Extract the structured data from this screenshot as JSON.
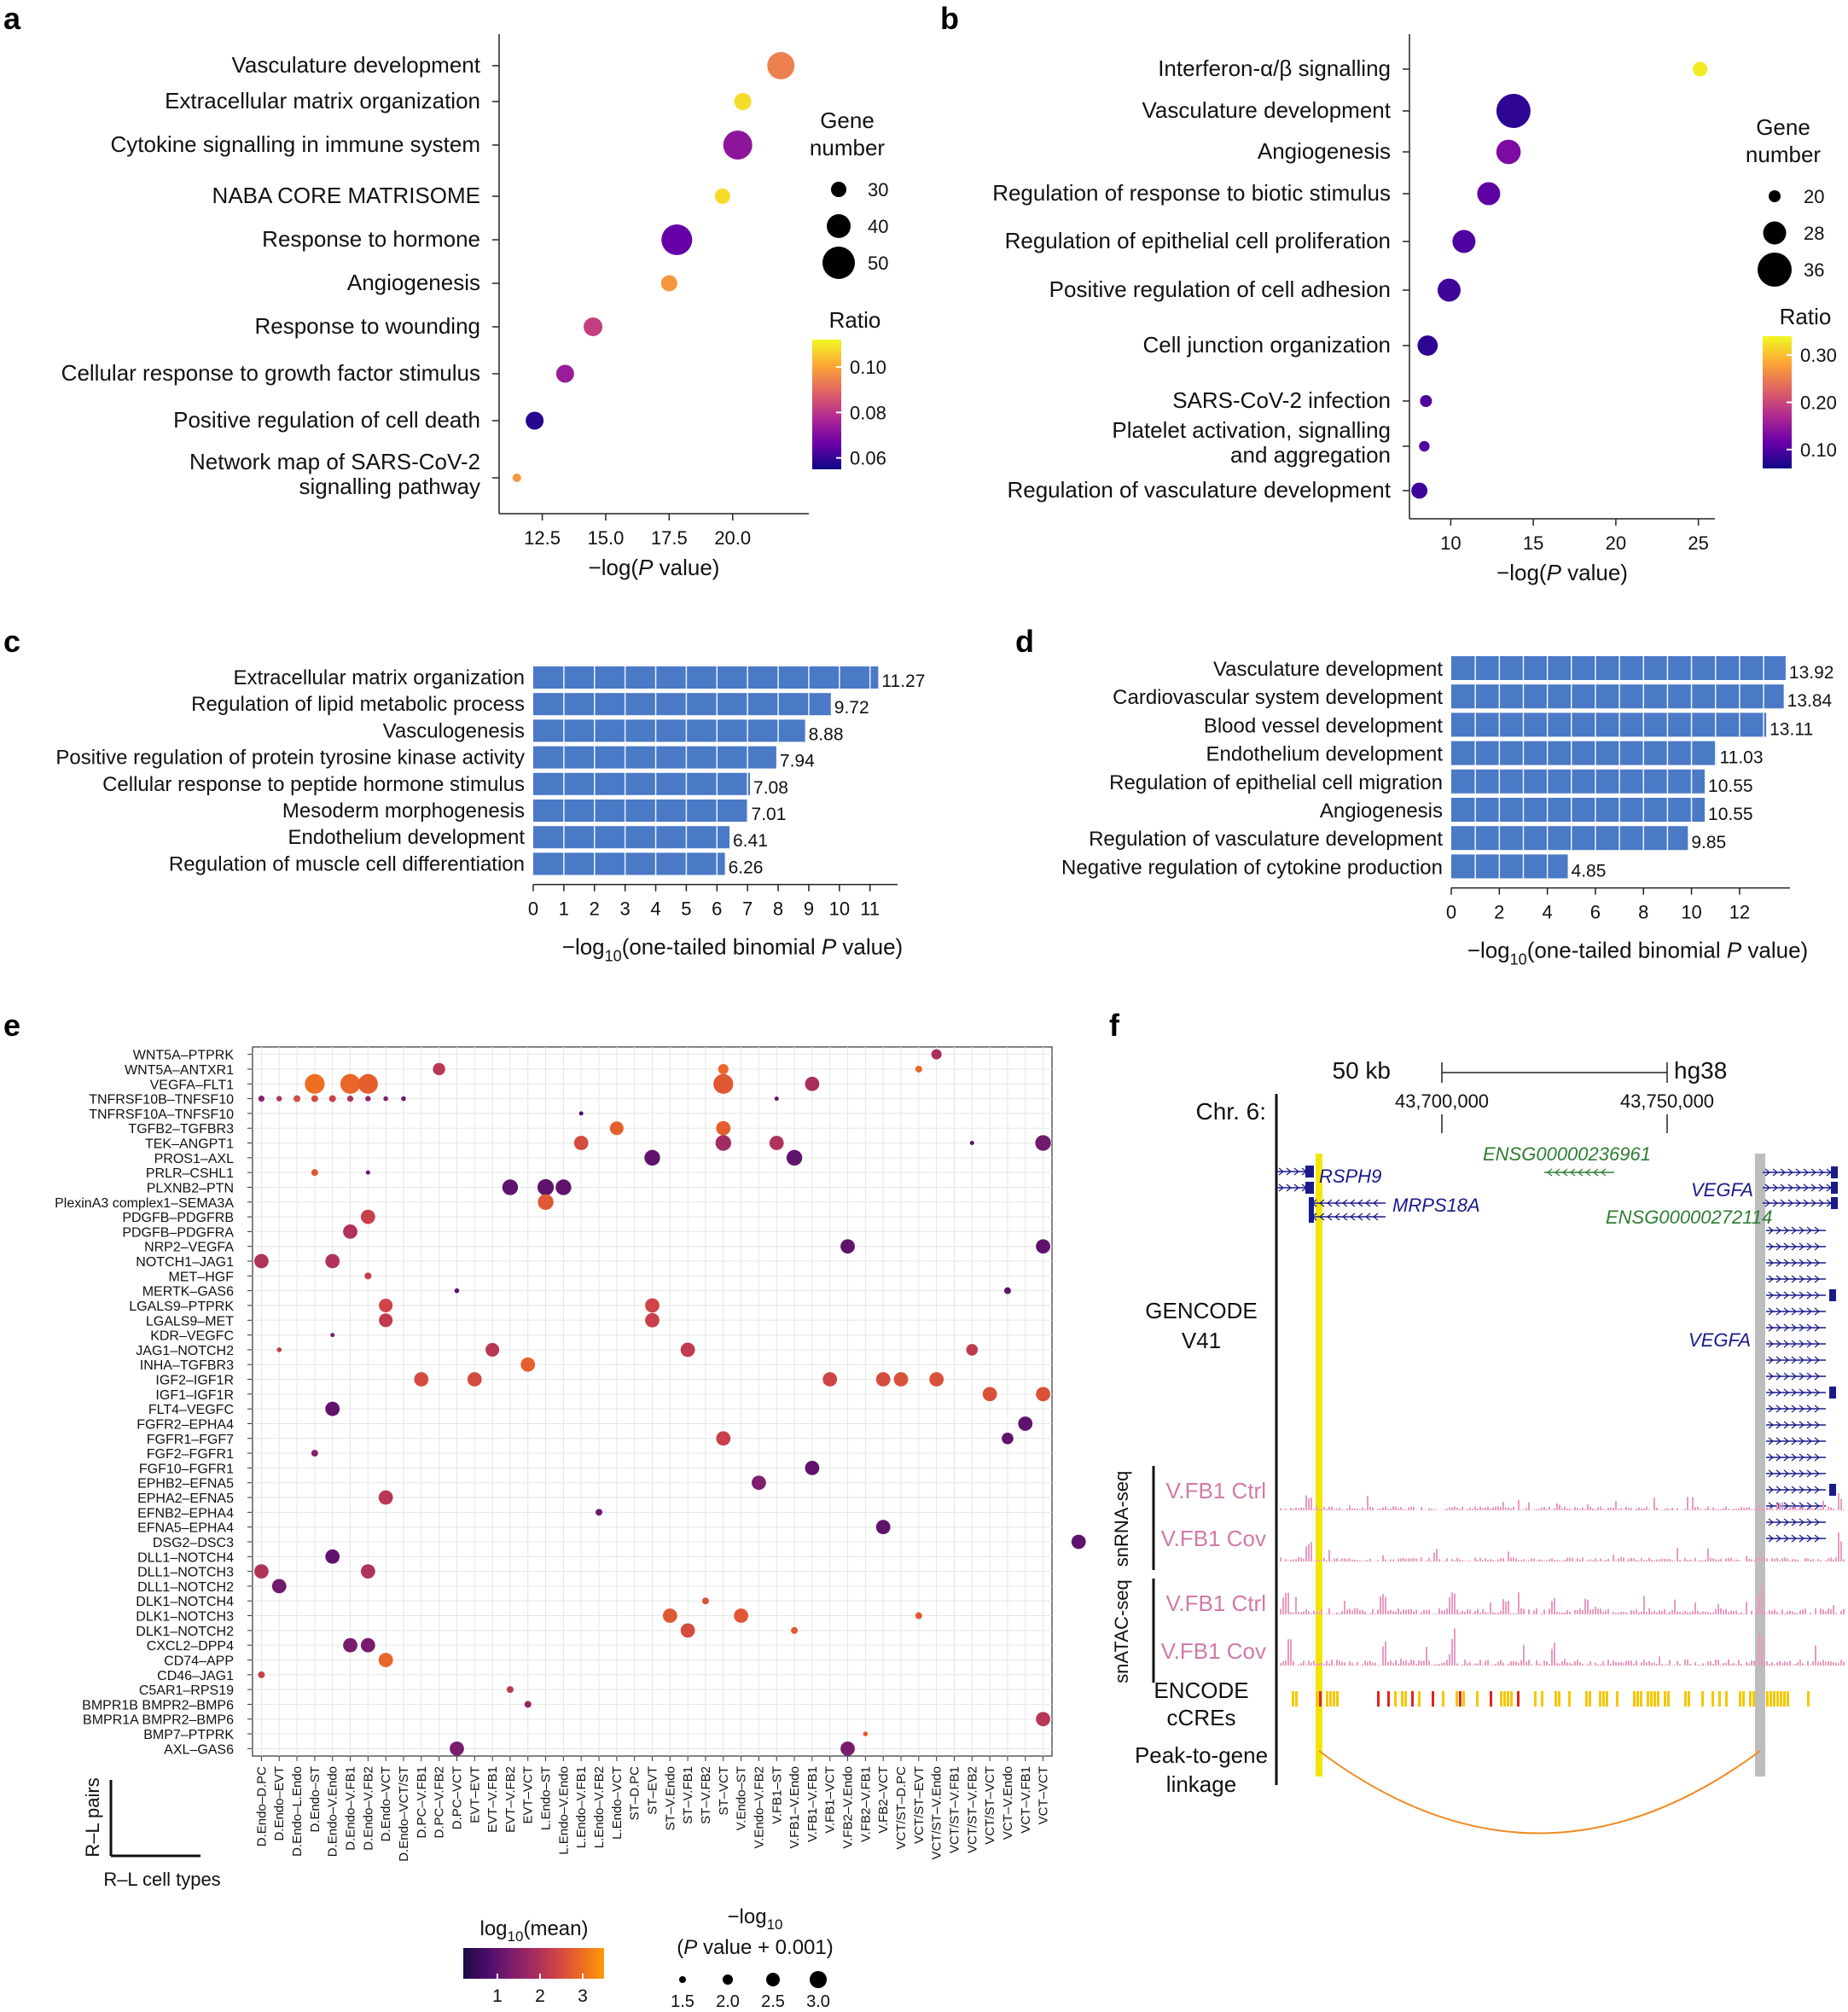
{
  "chart_data": [
    {
      "panel": "a",
      "type": "scatter",
      "categories": [
        "Vasculature development",
        "Extracellular matrix organization",
        "Cytokine signalling in immune system",
        "NABA CORE MATRISOME",
        "Response to hormone",
        "Angiogenesis",
        "Response to wounding",
        "Cellular response to growth factor stimulus",
        "Positive regulation of cell death",
        "Network map of SARS-CoV-2\nsignalling pathway"
      ],
      "x": [
        21.9,
        20.4,
        20.2,
        19.6,
        17.8,
        17.5,
        14.5,
        13.4,
        12.2,
        11.5
      ],
      "size": [
        44,
        32,
        46,
        30,
        48,
        31,
        34,
        33,
        33,
        22
      ],
      "color": [
        0.094,
        0.108,
        0.072,
        0.108,
        0.066,
        0.098,
        0.082,
        0.074,
        0.058,
        0.098
      ],
      "xlabel": "−log(P value)",
      "xticks": [
        12.5,
        15.0,
        17.5,
        20.0
      ],
      "xlim": [
        10.8,
        23.0
      ],
      "legend_size_title": "Gene number",
      "legend_size_values": [
        30,
        40,
        50
      ],
      "legend_color_title": "Ratio",
      "legend_color_ticks": [
        0.1,
        0.08,
        0.06
      ],
      "legend_color_range": [
        0.055,
        0.112
      ]
    },
    {
      "panel": "b",
      "type": "scatter",
      "categories": [
        "Interferon-α/β signalling",
        "Vasculature development",
        "Angiogenesis",
        "Regulation of response to biotic stimulus",
        "Regulation of epithelial cell proliferation",
        "Positive regulation of cell adhesion",
        "Cell junction organization",
        "SARS-CoV-2 infection",
        "Platelet activation, signalling\nand aggregation",
        "Regulation of vasculature development"
      ],
      "x": [
        25.1,
        13.8,
        13.5,
        12.3,
        10.8,
        9.9,
        8.6,
        8.5,
        8.4,
        8.1
      ],
      "size": [
        22,
        36,
        29,
        28,
        28,
        28,
        26,
        20,
        19,
        23
      ],
      "color": [
        0.33,
        0.08,
        0.13,
        0.11,
        0.1,
        0.09,
        0.08,
        0.1,
        0.1,
        0.09
      ],
      "xlabel": "−log(P value)",
      "xticks": [
        10,
        15,
        20,
        25
      ],
      "xlim": [
        7.5,
        26.0
      ],
      "legend_size_title": "Gene number",
      "legend_size_values": [
        20,
        28,
        36
      ],
      "legend_color_title": "Ratio",
      "legend_color_ticks": [
        0.3,
        0.2,
        0.1
      ],
      "legend_color_range": [
        0.06,
        0.34
      ]
    },
    {
      "panel": "c",
      "type": "bar",
      "categories": [
        "Extracellular matrix organization",
        "Regulation of lipid metabolic process",
        "Vasculogenesis",
        "Positive regulation of protein tyrosine kinase activity",
        "Cellular response to peptide hormone stimulus",
        "Mesoderm morphogenesis",
        "Endothelium development",
        "Regulation of muscle cell differentiation"
      ],
      "values": [
        11.27,
        9.72,
        8.88,
        7.94,
        7.08,
        7.01,
        6.41,
        6.26
      ],
      "value_labels": [
        "11.27",
        "9.72",
        "8.88",
        "7.94",
        "7.08",
        "7.01",
        "6.41",
        "6.26"
      ],
      "xlabel": "−log",
      "xlabel_sub": "10",
      "xlabel_tail": "(one-tailed binomial P value)",
      "xticks": [
        0,
        1,
        2,
        3,
        4,
        5,
        6,
        7,
        8,
        9,
        10,
        11
      ],
      "xlim": [
        0,
        11.9
      ]
    },
    {
      "panel": "d",
      "type": "bar",
      "categories": [
        "Vasculature development",
        "Cardiovascular system development",
        "Blood vessel development",
        "Endothelium development",
        "Regulation of epithelial cell migration",
        "Angiogenesis",
        "Regulation of vasculature development",
        "Negative regulation of cytokine production"
      ],
      "values": [
        13.92,
        13.84,
        13.11,
        11.03,
        10.55,
        10.55,
        9.85,
        4.85
      ],
      "value_labels": [
        "13.92",
        "13.84",
        "13.11",
        "11.03",
        "10.55",
        "10.55",
        "9.85",
        "4.85"
      ],
      "xlabel": "−log",
      "xlabel_sub": "10",
      "xlabel_tail": "(one-tailed binomial P value)",
      "xticks": [
        0,
        2,
        4,
        6,
        8,
        10,
        12
      ],
      "xlim": [
        0,
        14.1
      ]
    },
    {
      "panel": "e",
      "type": "scatter",
      "rows": [
        "WNT5A–PTPRK",
        "WNT5A–ANTXR1",
        "VEGFA–FLT1",
        "TNFRSF10B–TNFSF10",
        "TNFRSF10A–TNFSF10",
        "TGFB2–TGFBR3",
        "TEK–ANGPT1",
        "PROS1–AXL",
        "PRLR–CSHL1",
        "PLXNB2–PTN",
        "PlexinA3 complex1–SEMA3A",
        "PDGFB–PDGFRB",
        "PDGFB–PDGFRA",
        "NRP2–VEGFA",
        "NOTCH1–JAG1",
        "MET–HGF",
        "MERTK–GAS6",
        "LGALS9–PTPRK",
        "LGALS9–MET",
        "KDR–VEGFC",
        "JAG1–NOTCH2",
        "INHA–TGFBR3",
        "IGF2–IGF1R",
        "IGF1–IGF1R",
        "FLT4–VEGFC",
        "FGFR2–EPHA4",
        "FGFR1–FGF7",
        "FGF2–FGFR1",
        "FGF10–FGFR1",
        "EPHB2–EFNA5",
        "EPHA2–EFNA5",
        "EFNB2–EPHA4",
        "EFNA5–EPHA4",
        "DSG2–DSC3",
        "DLL1–NOTCH4",
        "DLL1–NOTCH3",
        "DLL1–NOTCH2",
        "DLK1–NOTCH4",
        "DLK1–NOTCH3",
        "DLK1–NOTCH2",
        "CXCL2–DPP4",
        "CD74–APP",
        "CD46–JAG1",
        "C5AR1–RPS19",
        "BMPR1B BMPR2–BMP6",
        "BMPR1A BMPR2–BMP6",
        "BMP7–PTPRK",
        "AXL–GAS6"
      ],
      "columns": [
        "D.Endo–D.PC",
        "D.Endo–EVT",
        "D.Endo–L.Endo",
        "D.Endo–ST",
        "D.Endo–V.Endo",
        "D.Endo–V.FB1",
        "D.Endo–V.FB2",
        "D.Endo–VCT",
        "D.Endo–VCT/ST",
        "D.PC–V.FB1",
        "D.PC–V.FB2",
        "D.PC–VCT",
        "EVT–EVT",
        "EVT–V.FB1",
        "EVT–V.FB2",
        "EVT–VCT",
        "L.Endo–ST",
        "L.Endo–V.Endo",
        "L.Endo–V.FB1",
        "L.Endo–V.FB2",
        "L.Endo–VCT",
        "ST–D.PC",
        "ST–EVT",
        "ST–V.Endo",
        "ST–V.FB1",
        "ST–V.FB2",
        "ST–VCT",
        "V.Endo–ST",
        "V.Endo–V.FB2",
        "V.FB1–ST",
        "V.FB1–V.Endo",
        "V.FB1–V.FB1",
        "V.FB1–VCT",
        "V.FB2–V.Endo",
        "V.FB2–V.FB1",
        "V.FB2–VCT",
        "VCT/ST–D.PC",
        "VCT/ST–EVT",
        "VCT/ST–V.Endo",
        "VCT/ST–V.FB1",
        "VCT/ST–V.FB2",
        "VCT/ST–VCT",
        "VCT–V.Endo",
        "VCT–V.FB1",
        "VCT–VCT"
      ],
      "points": [
        [
          0,
          38,
          1.9,
          2.0
        ],
        [
          1,
          10,
          2.1,
          2.3
        ],
        [
          1,
          26,
          2.9,
          2.0
        ],
        [
          1,
          37,
          2.9,
          1.5
        ],
        [
          2,
          3,
          3.0,
          3.4
        ],
        [
          2,
          5,
          2.9,
          3.4
        ],
        [
          2,
          6,
          2.8,
          3.4
        ],
        [
          2,
          26,
          2.7,
          3.4
        ],
        [
          2,
          31,
          1.9,
          2.6
        ],
        [
          3,
          0,
          1.5,
          1.4
        ],
        [
          3,
          1,
          2.0,
          1.3
        ],
        [
          3,
          2,
          2.5,
          1.5
        ],
        [
          3,
          3,
          2.5,
          1.5
        ],
        [
          3,
          4,
          2.3,
          1.5
        ],
        [
          3,
          5,
          2.0,
          1.4
        ],
        [
          3,
          6,
          1.6,
          1.3
        ],
        [
          3,
          7,
          1.4,
          1.2
        ],
        [
          3,
          8,
          1.2,
          1.2
        ],
        [
          3,
          29,
          1.0,
          1.1
        ],
        [
          4,
          18,
          0.9,
          1.0
        ],
        [
          5,
          20,
          2.8,
          2.5
        ],
        [
          5,
          26,
          2.8,
          2.6
        ],
        [
          6,
          18,
          2.5,
          2.6
        ],
        [
          6,
          26,
          1.8,
          2.8
        ],
        [
          6,
          29,
          2.0,
          2.6
        ],
        [
          6,
          40,
          1.0,
          1.1
        ],
        [
          6,
          44,
          1.2,
          2.8
        ],
        [
          7,
          22,
          1.0,
          2.8
        ],
        [
          7,
          30,
          1.0,
          2.8
        ],
        [
          8,
          3,
          2.7,
          1.5
        ],
        [
          8,
          6,
          1.0,
          1.1
        ],
        [
          9,
          14,
          1.0,
          2.8
        ],
        [
          9,
          16,
          1.0,
          2.9
        ],
        [
          9,
          17,
          1.0,
          2.8
        ],
        [
          10,
          16,
          2.7,
          2.8
        ],
        [
          11,
          6,
          2.3,
          2.6
        ],
        [
          12,
          5,
          2.0,
          2.6
        ],
        [
          13,
          33,
          1.0,
          2.6
        ],
        [
          13,
          44,
          1.0,
          2.6
        ],
        [
          14,
          0,
          2.0,
          2.6
        ],
        [
          14,
          4,
          2.0,
          2.6
        ],
        [
          15,
          6,
          2.2,
          1.5
        ],
        [
          16,
          11,
          1.0,
          1.2
        ],
        [
          16,
          42,
          1.0,
          1.5
        ],
        [
          17,
          7,
          2.4,
          2.5
        ],
        [
          17,
          22,
          2.4,
          2.6
        ],
        [
          18,
          7,
          2.2,
          2.5
        ],
        [
          18,
          22,
          2.3,
          2.6
        ],
        [
          19,
          4,
          1.4,
          1.1
        ],
        [
          20,
          1,
          2.2,
          1.2
        ],
        [
          20,
          13,
          2.1,
          2.5
        ],
        [
          20,
          24,
          2.2,
          2.6
        ],
        [
          20,
          40,
          2.2,
          2.2
        ],
        [
          21,
          15,
          2.8,
          2.6
        ],
        [
          22,
          9,
          2.5,
          2.6
        ],
        [
          22,
          12,
          2.5,
          2.6
        ],
        [
          22,
          32,
          2.4,
          2.6
        ],
        [
          22,
          35,
          2.5,
          2.6
        ],
        [
          22,
          36,
          2.6,
          2.6
        ],
        [
          22,
          38,
          2.6,
          2.6
        ],
        [
          23,
          41,
          2.6,
          2.6
        ],
        [
          23,
          44,
          2.6,
          2.6
        ],
        [
          24,
          4,
          1.0,
          2.6
        ],
        [
          25,
          43,
          1.0,
          2.6
        ],
        [
          26,
          26,
          2.3,
          2.6
        ],
        [
          26,
          42,
          1.0,
          2.2
        ],
        [
          27,
          3,
          1.5,
          1.5
        ],
        [
          28,
          31,
          1.0,
          2.6
        ],
        [
          29,
          28,
          1.4,
          2.6
        ],
        [
          30,
          7,
          2.1,
          2.6
        ],
        [
          31,
          19,
          1.2,
          1.5
        ],
        [
          32,
          35,
          1.0,
          2.6
        ],
        [
          33,
          46,
          1.0,
          2.6
        ],
        [
          34,
          4,
          1.0,
          2.6
        ],
        [
          35,
          0,
          2.0,
          2.6
        ],
        [
          35,
          6,
          2.0,
          2.6
        ],
        [
          36,
          1,
          1.2,
          2.6
        ],
        [
          37,
          25,
          2.6,
          1.5
        ],
        [
          38,
          23,
          2.7,
          2.6
        ],
        [
          38,
          27,
          2.7,
          2.6
        ],
        [
          38,
          37,
          2.7,
          1.5
        ],
        [
          39,
          24,
          2.5,
          2.6
        ],
        [
          39,
          30,
          2.7,
          1.5
        ],
        [
          40,
          5,
          1.3,
          2.6
        ],
        [
          40,
          6,
          1.3,
          2.6
        ],
        [
          41,
          7,
          2.9,
          2.6
        ],
        [
          42,
          0,
          2.3,
          1.5
        ],
        [
          43,
          14,
          2.2,
          1.5
        ],
        [
          44,
          15,
          1.6,
          1.5
        ],
        [
          45,
          44,
          2.1,
          2.6
        ],
        [
          46,
          34,
          2.8,
          1.2
        ],
        [
          47,
          11,
          1.3,
          2.6
        ],
        [
          47,
          33,
          1.3,
          2.6
        ]
      ],
      "y_corner_label": "R–L pairs",
      "x_corner_label": "R–L cell types",
      "legend_color_title": "log",
      "legend_color_sub": "10",
      "legend_color_tail": "(mean)",
      "legend_color_ticks": [
        1,
        2,
        3
      ],
      "legend_color_range": [
        0.2,
        3.5
      ],
      "legend_size_title_1": "−log",
      "legend_size_sub": "10",
      "legend_size_title_2": "(P value + 0.001)",
      "legend_size_values": [
        1.5,
        2.0,
        2.5,
        3.0
      ]
    },
    {
      "panel": "f",
      "type": "genome-track",
      "scale_label": "50 kb",
      "assembly": "hg38",
      "chromosome": "Chr. 6:",
      "coord_ticks": [
        "43,700,000",
        "43,750,000"
      ],
      "genes": [
        "RSPH9",
        "MRPS18A",
        "ENSG00000236961",
        "VEGFA",
        "ENSG00000272114",
        "VEGFA"
      ],
      "track_labels": [
        "GENCODE",
        "V41",
        "V.FB1 Ctrl",
        "V.FB1 Cov",
        "V.FB1 Ctrl",
        "V.FB1 Cov",
        "ENCODE",
        "cCREs",
        "Peak-to-gene",
        "linkage"
      ],
      "assay_labels": [
        "snRNA-seq",
        "snATAC-seq"
      ]
    }
  ],
  "panel_letters": [
    "a",
    "b",
    "c",
    "d",
    "e",
    "f"
  ],
  "colors": {
    "bar": "#4a79c6",
    "plasma": [
      "#0d0887",
      "#6a00a8",
      "#b12a90",
      "#e16462",
      "#fca636",
      "#f0f921"
    ],
    "inferno": [
      "#1b0c41",
      "#4a0c6b",
      "#781c6d",
      "#a52c60",
      "#cf4446",
      "#ed6925",
      "#fb9b06"
    ],
    "track_pink": "#e89ac2",
    "gene_navy": "#1a1a8c",
    "gene_green": "#2e7d32",
    "highlight_yellow": "#f2e600",
    "highlight_gray": "#bdbdbd",
    "linkage": "#f08a24"
  }
}
